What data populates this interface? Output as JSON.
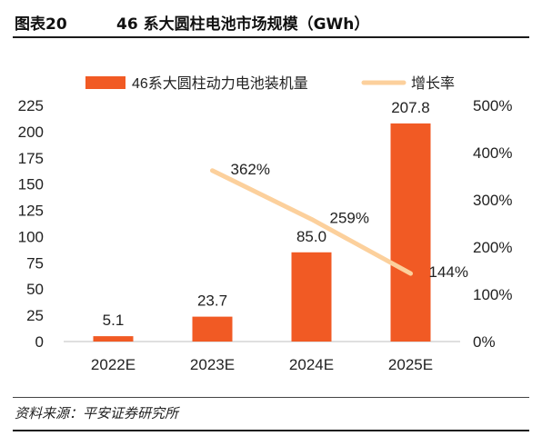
{
  "figure": {
    "label": "图表20",
    "title": "46 系大圆柱电池市场规模（GWh）"
  },
  "source": "资料来源：平安证券研究所",
  "colors": {
    "bar": "#F15A24",
    "line": "#FCD09C"
  },
  "chart_data": {
    "type": "bar",
    "categories": [
      "2022E",
      "2023E",
      "2024E",
      "2025E"
    ],
    "series": [
      {
        "name": "46系大圆柱动力电池装机量",
        "type": "bar",
        "axis": "left",
        "values": [
          5.1,
          23.7,
          85.0,
          207.8
        ],
        "labels": [
          "5.1",
          "23.7",
          "85.0",
          "207.8"
        ]
      },
      {
        "name": "增长率",
        "type": "line",
        "axis": "right",
        "values": [
          null,
          362,
          259,
          144
        ],
        "labels": [
          "",
          "362%",
          "259%",
          "144%"
        ]
      }
    ],
    "y_left": {
      "range": [
        0,
        225
      ],
      "ticks": [
        0,
        25,
        50,
        75,
        100,
        125,
        150,
        175,
        200,
        225
      ],
      "tick_labels": [
        "0",
        "25",
        "50",
        "75",
        "100",
        "125",
        "150",
        "175",
        "200",
        "225"
      ]
    },
    "y_right": {
      "range": [
        0,
        500
      ],
      "ticks": [
        0,
        100,
        200,
        300,
        400,
        500
      ],
      "tick_labels": [
        "0%",
        "100%",
        "200%",
        "300%",
        "400%",
        "500%"
      ]
    },
    "legend_position": "top",
    "grid": false
  }
}
